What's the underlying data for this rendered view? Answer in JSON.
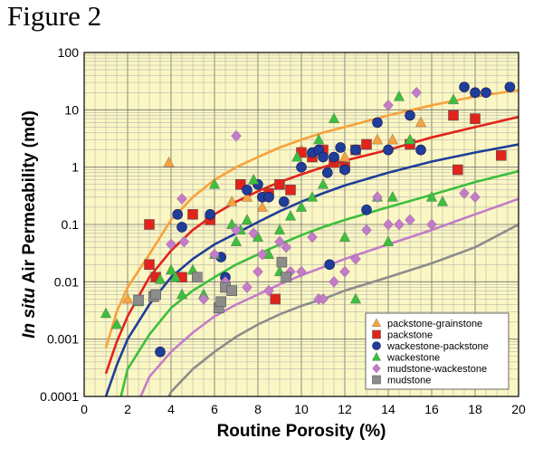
{
  "figure_title": "Figure 2",
  "chart_data": {
    "type": "scatter",
    "xlabel": "Routine Porosity (%)",
    "ylabel_italic": "In situ",
    "ylabel_rest": " Air Permeability (md)",
    "xlim": [
      0,
      20
    ],
    "ylim": [
      0.0001,
      100
    ],
    "y_scale": "log",
    "x_ticks": [
      "0",
      "2",
      "4",
      "6",
      "8",
      "10",
      "12",
      "14",
      "16",
      "18",
      "20"
    ],
    "y_ticks": [
      "0.0001",
      "0.001",
      "0.01",
      "0.1",
      "1",
      "10",
      "100"
    ],
    "grid": true,
    "legend_position": "bottom-right",
    "colors": {
      "plot_bg": "#fbf7c4",
      "packstone-grainstone": "#f7a23c",
      "packstone": "#e2231a",
      "wackestone-packstone": "#1f3d99",
      "wackestone": "#3cbf3c",
      "mudstone-wackestone": "#c27cc8",
      "mudstone": "#8c8c8c"
    },
    "series": [
      {
        "name": "packstone-grainstone",
        "marker": "triangle",
        "color": "#f7a23c",
        "curve": [
          [
            1,
            0.0007
          ],
          [
            1.5,
            0.003
          ],
          [
            2,
            0.008
          ],
          [
            3,
            0.03
          ],
          [
            4,
            0.12
          ],
          [
            5,
            0.3
          ],
          [
            6,
            0.6
          ],
          [
            7,
            1
          ],
          [
            8,
            1.5
          ],
          [
            9,
            2.2
          ],
          [
            10,
            3
          ],
          [
            11,
            4
          ],
          [
            12,
            5
          ],
          [
            14,
            8
          ],
          [
            16,
            12
          ],
          [
            18,
            17
          ],
          [
            20,
            22
          ]
        ],
        "points": [
          [
            3.9,
            1.2
          ],
          [
            2,
            0.005
          ],
          [
            6.8,
            0.25
          ],
          [
            7.5,
            0.3
          ],
          [
            8.2,
            0.2
          ],
          [
            12,
            1.5
          ],
          [
            13.5,
            3
          ],
          [
            14.2,
            3
          ],
          [
            15.5,
            6
          ],
          [
            18,
            20
          ],
          [
            10,
            2
          ]
        ]
      },
      {
        "name": "packstone",
        "marker": "square",
        "color": "#e2231a",
        "curve": [
          [
            1,
            0.00025
          ],
          [
            1.5,
            0.0009
          ],
          [
            2,
            0.0025
          ],
          [
            3,
            0.012
          ],
          [
            4,
            0.035
          ],
          [
            5,
            0.08
          ],
          [
            6,
            0.15
          ],
          [
            7,
            0.25
          ],
          [
            8,
            0.38
          ],
          [
            9,
            0.55
          ],
          [
            10,
            0.75
          ],
          [
            11,
            1
          ],
          [
            12,
            1.3
          ],
          [
            14,
            2
          ],
          [
            16,
            3.3
          ],
          [
            18,
            5
          ],
          [
            20,
            7.5
          ]
        ],
        "points": [
          [
            3,
            0.1
          ],
          [
            3,
            0.02
          ],
          [
            3.3,
            0.012
          ],
          [
            4.5,
            0.012
          ],
          [
            5,
            0.15
          ],
          [
            5.8,
            0.12
          ],
          [
            7.2,
            0.5
          ],
          [
            8.5,
            0.35
          ],
          [
            9,
            0.5
          ],
          [
            10,
            1.8
          ],
          [
            10.5,
            1.5
          ],
          [
            11,
            2
          ],
          [
            11.5,
            1.2
          ],
          [
            12,
            1
          ],
          [
            12.5,
            2
          ],
          [
            13,
            2.5
          ],
          [
            8.8,
            0.005
          ],
          [
            15,
            2.5
          ],
          [
            17,
            8
          ],
          [
            17.2,
            0.9
          ],
          [
            18,
            7
          ],
          [
            19.2,
            1.6
          ],
          [
            9.5,
            0.4
          ]
        ]
      },
      {
        "name": "wackestone-packstone",
        "marker": "circle",
        "color": "#1f3d99",
        "curve": [
          [
            1,
            0.0001
          ],
          [
            1.5,
            0.00035
          ],
          [
            2,
            0.001
          ],
          [
            3,
            0.004
          ],
          [
            4,
            0.012
          ],
          [
            5,
            0.025
          ],
          [
            6,
            0.045
          ],
          [
            7,
            0.07
          ],
          [
            8,
            0.11
          ],
          [
            9,
            0.17
          ],
          [
            10,
            0.25
          ],
          [
            11,
            0.35
          ],
          [
            12,
            0.48
          ],
          [
            14,
            0.8
          ],
          [
            16,
            1.25
          ],
          [
            18,
            1.8
          ],
          [
            20,
            2.5
          ]
        ],
        "points": [
          [
            3.5,
            0.0006
          ],
          [
            4.3,
            0.15
          ],
          [
            4.5,
            0.09
          ],
          [
            5.8,
            0.15
          ],
          [
            6.3,
            0.027
          ],
          [
            7.5,
            0.4
          ],
          [
            8,
            0.5
          ],
          [
            8.2,
            0.3
          ],
          [
            8.5,
            0.3
          ],
          [
            9.2,
            0.25
          ],
          [
            10,
            1
          ],
          [
            10.5,
            1.8
          ],
          [
            10.8,
            2
          ],
          [
            11,
            1.5
          ],
          [
            11.2,
            0.8
          ],
          [
            11.5,
            1.5
          ],
          [
            11.8,
            2.2
          ],
          [
            12,
            0.9
          ],
          [
            12.5,
            2
          ],
          [
            13,
            0.18
          ],
          [
            13.5,
            6
          ],
          [
            14,
            2
          ],
          [
            15,
            8
          ],
          [
            15.5,
            2
          ],
          [
            17.5,
            25
          ],
          [
            18,
            20
          ],
          [
            18.5,
            20
          ],
          [
            19.6,
            25
          ],
          [
            11.3,
            0.02
          ],
          [
            6.5,
            0.012
          ]
        ]
      },
      {
        "name": "wackestone",
        "marker": "triangle",
        "color": "#3cbf3c",
        "curve": [
          [
            1.5,
            5e-05
          ],
          [
            2,
            0.0003
          ],
          [
            3,
            0.0012
          ],
          [
            4,
            0.0035
          ],
          [
            5,
            0.007
          ],
          [
            6,
            0.012
          ],
          [
            7,
            0.02
          ],
          [
            8,
            0.03
          ],
          [
            9,
            0.045
          ],
          [
            10,
            0.065
          ],
          [
            11,
            0.09
          ],
          [
            12,
            0.12
          ],
          [
            14,
            0.2
          ],
          [
            16,
            0.33
          ],
          [
            18,
            0.55
          ],
          [
            20,
            0.85
          ]
        ],
        "points": [
          [
            1,
            0.0028
          ],
          [
            1.5,
            0.0018
          ],
          [
            2.5,
            0.0045
          ],
          [
            3.5,
            0.011
          ],
          [
            4,
            0.016
          ],
          [
            4.2,
            0.012
          ],
          [
            4.5,
            0.006
          ],
          [
            5,
            0.016
          ],
          [
            5.5,
            0.006
          ],
          [
            6,
            0.03
          ],
          [
            6.8,
            0.1
          ],
          [
            7,
            0.05
          ],
          [
            7.2,
            0.08
          ],
          [
            7.5,
            0.12
          ],
          [
            7.8,
            0.6
          ],
          [
            8,
            0.06
          ],
          [
            8.5,
            0.03
          ],
          [
            9,
            0.08
          ],
          [
            9.5,
            0.14
          ],
          [
            10,
            0.2
          ],
          [
            10.5,
            0.3
          ],
          [
            11,
            0.5
          ],
          [
            11.5,
            7
          ],
          [
            12,
            0.06
          ],
          [
            12.5,
            0.005
          ],
          [
            13.5,
            0.3
          ],
          [
            14,
            0.05
          ],
          [
            14.2,
            0.3
          ],
          [
            14.5,
            17
          ],
          [
            15,
            3
          ],
          [
            16,
            0.3
          ],
          [
            16.5,
            0.25
          ],
          [
            17,
            15
          ],
          [
            9,
            0.015
          ],
          [
            6,
            0.5
          ],
          [
            9.8,
            1.5
          ],
          [
            10.8,
            3
          ]
        ]
      },
      {
        "name": "mudstone-wackestone",
        "marker": "diamond",
        "color": "#c27cc8",
        "curve": [
          [
            2,
            3e-05
          ],
          [
            3,
            0.00022
          ],
          [
            4,
            0.0006
          ],
          [
            5,
            0.0013
          ],
          [
            6,
            0.0025
          ],
          [
            7,
            0.004
          ],
          [
            8,
            0.006
          ],
          [
            9,
            0.009
          ],
          [
            10,
            0.013
          ],
          [
            11,
            0.018
          ],
          [
            12,
            0.025
          ],
          [
            14,
            0.045
          ],
          [
            16,
            0.08
          ],
          [
            18,
            0.15
          ],
          [
            20,
            0.28
          ]
        ],
        "points": [
          [
            4,
            0.045
          ],
          [
            4.5,
            0.28
          ],
          [
            4.6,
            0.05
          ],
          [
            5.5,
            0.005
          ],
          [
            6,
            0.03
          ],
          [
            6.5,
            0.01
          ],
          [
            7,
            0.08
          ],
          [
            7.5,
            0.008
          ],
          [
            7.8,
            0.07
          ],
          [
            8,
            0.015
          ],
          [
            8.2,
            0.03
          ],
          [
            8.5,
            0.007
          ],
          [
            9,
            0.05
          ],
          [
            9.3,
            0.04
          ],
          [
            9.5,
            0.015
          ],
          [
            10,
            0.015
          ],
          [
            10.5,
            0.06
          ],
          [
            10.8,
            0.005
          ],
          [
            11,
            0.005
          ],
          [
            11.5,
            0.01
          ],
          [
            12,
            0.015
          ],
          [
            12.5,
            0.025
          ],
          [
            13,
            0.08
          ],
          [
            13.5,
            0.3
          ],
          [
            14,
            0.1
          ],
          [
            14.5,
            0.1
          ],
          [
            15,
            0.12
          ],
          [
            16,
            0.1
          ],
          [
            17.5,
            0.35
          ],
          [
            18,
            0.3
          ],
          [
            7,
            3.5
          ],
          [
            14,
            12
          ],
          [
            15.3,
            20
          ]
        ]
      },
      {
        "name": "mudstone",
        "marker": "square",
        "color": "#8c8c8c",
        "curve": [
          [
            3,
            2e-05
          ],
          [
            4,
            0.00012
          ],
          [
            5,
            0.0003
          ],
          [
            6,
            0.0006
          ],
          [
            7,
            0.0011
          ],
          [
            8,
            0.0018
          ],
          [
            9,
            0.0027
          ],
          [
            10,
            0.0038
          ],
          [
            11,
            0.005
          ],
          [
            12,
            0.007
          ],
          [
            14,
            0.012
          ],
          [
            16,
            0.021
          ],
          [
            18,
            0.04
          ],
          [
            20,
            0.1
          ]
        ],
        "points": [
          [
            2.5,
            0.0048
          ],
          [
            3.2,
            0.0055
          ],
          [
            3.3,
            0.006
          ],
          [
            5.2,
            0.012
          ],
          [
            6.2,
            0.0035
          ],
          [
            6.3,
            0.0045
          ],
          [
            6.5,
            0.008
          ],
          [
            6.8,
            0.007
          ],
          [
            9.1,
            0.022
          ],
          [
            9.3,
            0.012
          ]
        ]
      }
    ]
  }
}
